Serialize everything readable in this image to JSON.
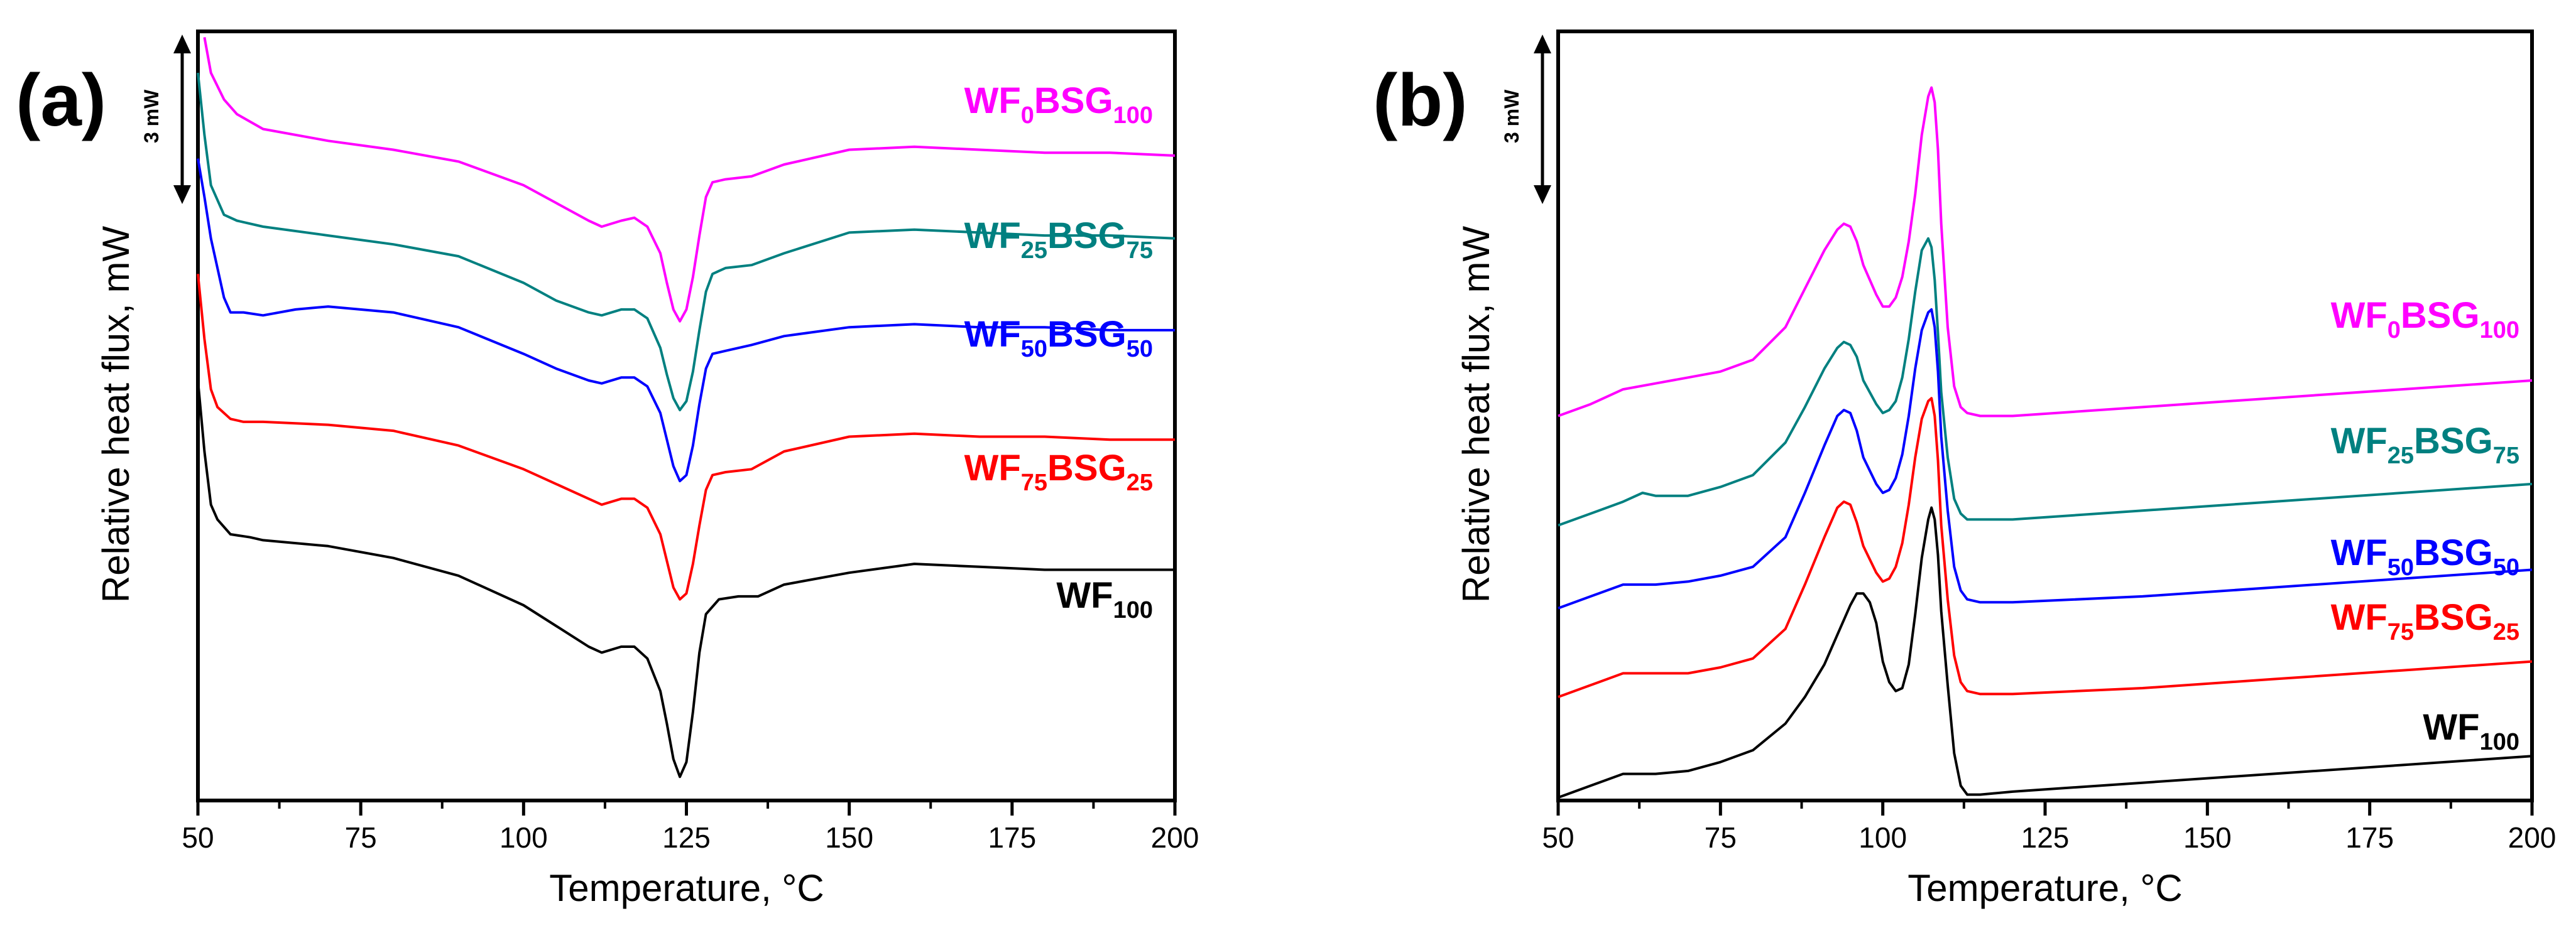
{
  "chart_data": [
    {
      "panel": "(a)",
      "type": "line",
      "xlabel": "Temperature, °C",
      "ylabel": "Relative heat flux, mW",
      "xlim": [
        50,
        200
      ],
      "xticks": [
        50,
        75,
        100,
        125,
        150,
        175,
        200
      ],
      "ylim": [
        0,
        26
      ],
      "scale_bar": {
        "label": "3 mW",
        "value": 3
      },
      "series": [
        {
          "name": "WF0BSG100",
          "label": {
            "base1": "WF",
            "sub1": "0",
            "base2": "BSG",
            "sub2": "100"
          },
          "color": "#ff00ff",
          "x": [
            51,
            52,
            54,
            56,
            60,
            70,
            80,
            90,
            100,
            105,
            110,
            112,
            115,
            117,
            119,
            121,
            122,
            123,
            124,
            125,
            126,
            127,
            128,
            129,
            131,
            135,
            140,
            150,
            160,
            170,
            180,
            190,
            200
          ],
          "y": [
            25.8,
            24.6,
            23.7,
            23.2,
            22.7,
            22.3,
            22.0,
            21.6,
            20.8,
            20.2,
            19.6,
            19.4,
            19.6,
            19.7,
            19.4,
            18.5,
            17.5,
            16.6,
            16.2,
            16.6,
            17.7,
            19.1,
            20.4,
            20.9,
            21.0,
            21.1,
            21.5,
            22.0,
            22.1,
            22.0,
            21.9,
            21.9,
            21.8
          ]
        },
        {
          "name": "WF25BSG75",
          "label": {
            "base1": "WF",
            "sub1": "25",
            "base2": "BSG",
            "sub2": "75"
          },
          "color": "#008080",
          "x": [
            50,
            51,
            52,
            54,
            56,
            60,
            70,
            80,
            90,
            100,
            105,
            110,
            112,
            115,
            117,
            119,
            121,
            122,
            123,
            124,
            125,
            126,
            127,
            128,
            129,
            131,
            135,
            140,
            150,
            160,
            170,
            180,
            190,
            200
          ],
          "y": [
            24.6,
            22.5,
            20.8,
            19.8,
            19.6,
            19.4,
            19.1,
            18.8,
            18.4,
            17.5,
            16.9,
            16.5,
            16.4,
            16.6,
            16.6,
            16.3,
            15.3,
            14.4,
            13.6,
            13.2,
            13.5,
            14.5,
            15.9,
            17.2,
            17.8,
            18.0,
            18.1,
            18.5,
            19.2,
            19.3,
            19.2,
            19.1,
            19.1,
            19.0
          ]
        },
        {
          "name": "WF50BSG50",
          "label": {
            "base1": "WF",
            "sub1": "50",
            "base2": "BSG",
            "sub2": "50"
          },
          "color": "#0000ff",
          "x": [
            50,
            51,
            52,
            54,
            55,
            57,
            60,
            65,
            70,
            80,
            90,
            100,
            105,
            110,
            112,
            115,
            117,
            119,
            121,
            122,
            123,
            124,
            125,
            126,
            127,
            128,
            129,
            131,
            135,
            140,
            150,
            160,
            170,
            180,
            190,
            200
          ],
          "y": [
            21.7,
            20.4,
            19.0,
            17.0,
            16.5,
            16.5,
            16.4,
            16.6,
            16.7,
            16.5,
            16.0,
            15.1,
            14.6,
            14.2,
            14.1,
            14.3,
            14.3,
            14.0,
            13.1,
            12.2,
            11.3,
            10.8,
            11.0,
            12.0,
            13.4,
            14.6,
            15.1,
            15.2,
            15.4,
            15.7,
            16.0,
            16.1,
            16.0,
            16.0,
            15.9,
            15.9
          ]
        },
        {
          "name": "WF75BSG25",
          "label": {
            "base1": "WF",
            "sub1": "75",
            "base2": "BSG",
            "sub2": "25"
          },
          "color": "#ff0000",
          "x": [
            50,
            51,
            52,
            53,
            55,
            57,
            60,
            70,
            80,
            90,
            100,
            105,
            110,
            112,
            115,
            117,
            119,
            121,
            122,
            123,
            124,
            125,
            126,
            127,
            128,
            129,
            131,
            135,
            140,
            150,
            160,
            170,
            180,
            190,
            200
          ],
          "y": [
            17.8,
            15.6,
            13.9,
            13.3,
            12.9,
            12.8,
            12.8,
            12.7,
            12.5,
            12.0,
            11.2,
            10.7,
            10.2,
            10.0,
            10.2,
            10.2,
            9.9,
            9.0,
            8.1,
            7.2,
            6.8,
            7.0,
            8.0,
            9.3,
            10.5,
            11.0,
            11.1,
            11.2,
            11.8,
            12.3,
            12.4,
            12.3,
            12.3,
            12.2,
            12.2
          ]
        },
        {
          "name": "WF100",
          "label": {
            "base1": "WF",
            "sub1": "100",
            "base2": "",
            "sub2": ""
          },
          "color": "#000000",
          "x": [
            50,
            51,
            52,
            53,
            55,
            58,
            60,
            70,
            80,
            90,
            100,
            105,
            110,
            112,
            115,
            117,
            119,
            121,
            122,
            123,
            124,
            125,
            126,
            127,
            128,
            130,
            133,
            136,
            140,
            150,
            160,
            170,
            180,
            190,
            200
          ],
          "y": [
            14.2,
            11.8,
            10.0,
            9.5,
            9.0,
            8.9,
            8.8,
            8.6,
            8.2,
            7.6,
            6.6,
            5.9,
            5.2,
            5.0,
            5.2,
            5.2,
            4.8,
            3.7,
            2.6,
            1.4,
            0.8,
            1.3,
            3.0,
            5.0,
            6.3,
            6.8,
            6.9,
            6.9,
            7.3,
            7.7,
            8.0,
            7.9,
            7.8,
            7.8,
            7.8
          ]
        }
      ]
    },
    {
      "panel": "(b)",
      "type": "line",
      "xlabel": "Temperature, °C",
      "ylabel": "Relative heat flux, mW",
      "xlim": [
        50,
        200
      ],
      "xticks": [
        50,
        75,
        100,
        125,
        150,
        175,
        200
      ],
      "ylim": [
        0,
        26
      ],
      "scale_bar": {
        "label": "3 mW",
        "value": 3
      },
      "series": [
        {
          "name": "WF0BSG100",
          "label": {
            "base1": "WF",
            "sub1": "0",
            "base2": "BSG",
            "sub2": "100"
          },
          "color": "#ff00ff",
          "x": [
            50,
            55,
            60,
            65,
            70,
            75,
            80,
            85,
            88,
            91,
            93,
            94,
            95,
            96,
            97,
            99,
            100,
            101,
            102,
            103,
            104,
            105,
            106,
            107,
            107.5,
            108,
            108.5,
            109,
            110,
            111,
            112,
            113,
            115,
            120,
            140,
            160,
            180,
            200
          ],
          "y": [
            13.0,
            13.4,
            13.9,
            14.1,
            14.3,
            14.5,
            14.9,
            16.0,
            17.3,
            18.6,
            19.3,
            19.5,
            19.4,
            18.9,
            18.1,
            17.1,
            16.7,
            16.7,
            17.0,
            17.7,
            18.9,
            20.5,
            22.5,
            23.8,
            24.1,
            23.6,
            22.0,
            19.5,
            16.0,
            14.0,
            13.3,
            13.1,
            13.0,
            13.0,
            13.3,
            13.6,
            13.9,
            14.2
          ]
        },
        {
          "name": "WF25BSG75",
          "label": {
            "base1": "WF",
            "sub1": "25",
            "base2": "BSG",
            "sub2": "75"
          },
          "color": "#008080",
          "x": [
            50,
            55,
            60,
            63,
            65,
            70,
            75,
            80,
            85,
            88,
            91,
            93,
            94,
            95,
            96,
            97,
            99,
            100,
            101,
            102,
            103,
            104,
            105,
            106,
            107,
            107.5,
            108,
            108.5,
            109,
            110,
            111,
            112,
            113,
            115,
            120,
            140,
            160,
            180,
            200
          ],
          "y": [
            9.3,
            9.7,
            10.1,
            10.4,
            10.3,
            10.3,
            10.6,
            11.0,
            12.1,
            13.3,
            14.6,
            15.3,
            15.5,
            15.4,
            15.0,
            14.2,
            13.4,
            13.1,
            13.2,
            13.5,
            14.3,
            15.6,
            17.2,
            18.6,
            19.0,
            18.7,
            17.6,
            15.8,
            13.8,
            11.6,
            10.2,
            9.7,
            9.5,
            9.5,
            9.5,
            9.8,
            10.1,
            10.4,
            10.7
          ]
        },
        {
          "name": "WF50BSG50",
          "label": {
            "base1": "WF",
            "sub1": "50",
            "base2": "BSG",
            "sub2": "50"
          },
          "color": "#0000ff",
          "x": [
            50,
            55,
            60,
            65,
            70,
            75,
            80,
            85,
            88,
            91,
            93,
            94,
            95,
            96,
            97,
            99,
            100,
            101,
            102,
            103,
            104,
            105,
            106,
            107,
            107.5,
            108,
            108.5,
            109,
            110,
            111,
            112,
            113,
            115,
            120,
            140,
            160,
            180,
            200
          ],
          "y": [
            6.5,
            6.9,
            7.3,
            7.3,
            7.4,
            7.6,
            7.9,
            8.9,
            10.4,
            12.0,
            13.0,
            13.2,
            13.1,
            12.5,
            11.6,
            10.7,
            10.4,
            10.5,
            10.9,
            11.7,
            13.0,
            14.6,
            15.9,
            16.5,
            16.6,
            16.0,
            14.5,
            12.3,
            9.8,
            7.9,
            7.1,
            6.8,
            6.7,
            6.7,
            6.9,
            7.2,
            7.5,
            7.8
          ]
        },
        {
          "name": "WF75BSG25",
          "label": {
            "base1": "WF",
            "sub1": "75",
            "base2": "BSG",
            "sub2": "25"
          },
          "color": "#ff0000",
          "x": [
            50,
            55,
            60,
            65,
            70,
            75,
            80,
            85,
            88,
            91,
            93,
            94,
            95,
            96,
            97,
            99,
            100,
            101,
            102,
            103,
            104,
            105,
            106,
            107,
            107.5,
            108,
            108.5,
            109,
            110,
            111,
            112,
            113,
            115,
            120,
            140,
            160,
            180,
            200
          ],
          "y": [
            3.5,
            3.9,
            4.3,
            4.3,
            4.3,
            4.5,
            4.8,
            5.8,
            7.3,
            8.9,
            9.9,
            10.1,
            10.0,
            9.4,
            8.6,
            7.7,
            7.4,
            7.5,
            7.9,
            8.7,
            10.0,
            11.6,
            12.9,
            13.5,
            13.6,
            13.0,
            11.5,
            9.3,
            6.8,
            4.9,
            4.0,
            3.7,
            3.6,
            3.6,
            3.8,
            4.1,
            4.4,
            4.7
          ]
        },
        {
          "name": "WF100",
          "label": {
            "base1": "WF",
            "sub1": "100",
            "base2": "",
            "sub2": ""
          },
          "color": "#000000",
          "x": [
            50,
            55,
            60,
            65,
            70,
            75,
            80,
            85,
            88,
            91,
            93,
            95,
            96,
            97,
            98,
            99,
            100,
            101,
            102,
            103,
            104,
            105,
            106,
            107,
            107.5,
            108,
            108.5,
            109,
            110,
            111,
            112,
            113,
            115,
            120,
            140,
            160,
            180,
            200
          ],
          "y": [
            0.1,
            0.5,
            0.9,
            0.9,
            1.0,
            1.3,
            1.7,
            2.6,
            3.5,
            4.6,
            5.6,
            6.6,
            7.0,
            7.0,
            6.7,
            6.0,
            4.7,
            4.0,
            3.7,
            3.8,
            4.6,
            6.3,
            8.2,
            9.5,
            9.9,
            9.5,
            8.3,
            6.4,
            3.9,
            1.6,
            0.5,
            0.2,
            0.2,
            0.3,
            0.6,
            0.9,
            1.2,
            1.5
          ]
        }
      ]
    }
  ]
}
